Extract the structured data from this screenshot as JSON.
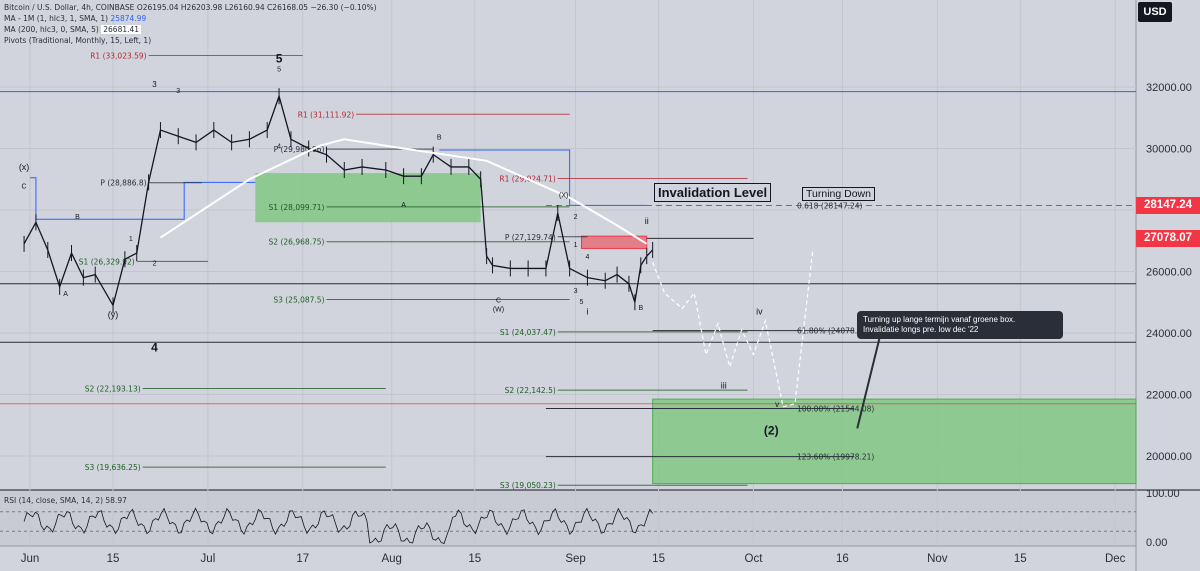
{
  "legend": {
    "title": "Bitcoin / U.S. Dollar, 4h, COINBASE",
    "ohlc": "O26195.04  H26203.98  L26160.94  C26168.05  −26.30 (−0.10%)",
    "ma1_label": "MA - 1M (1, hlc3, 1, SMA, 1)",
    "ma1_value": "25874.99",
    "ma2_label": "MA (200, hlc3, 0, SMA, 5)",
    "ma2_value": "26681.41",
    "pivots_label": "Pivots (Traditional, Monthly, 15, Left, 1)"
  },
  "currency": "USD",
  "annotations": {
    "invalidation": "Invalidation Level",
    "turning_down": "Turning Down",
    "callout_line1": "Turning up lange termijn vanaf groene box.",
    "callout_line2": "Invalidatie longs pre. low dec '22"
  },
  "price_tags": [
    {
      "value": "28147.24",
      "price": 28147.24,
      "color": "#f23645"
    },
    {
      "value": "27078.07",
      "price": 27078.07,
      "color": "#f23645"
    }
  ],
  "colors": {
    "background": "#d1d4dc",
    "candle": "#131722",
    "ma": "#ffffff",
    "green_box": "#81c784",
    "red": "#f23645",
    "blue": "#2962ff",
    "pivot_red": "#b22833",
    "pivot_green": "#1b5e20"
  },
  "chart_data": {
    "type": "line",
    "title": "Bitcoin / U.S. Dollar, 4h, COINBASE",
    "y_axis_ticks": [
      "32000.00",
      "30000.00",
      "28000.00",
      "26000.00",
      "24000.00",
      "22000.00",
      "20000.00"
    ],
    "y_ticks_numeric": [
      32000,
      30000,
      28000,
      26000,
      24000,
      22000,
      20000
    ],
    "x_axis_ticks": [
      "Jun",
      "15",
      "Jul",
      "17",
      "Aug",
      "15",
      "Sep",
      "15",
      "Oct",
      "16",
      "Nov",
      "15",
      "Dec"
    ],
    "rsi_ticks": [
      "100.00",
      "0.00"
    ],
    "rsi_label": "RSI (14, close, SMA, 14, 2)",
    "rsi_value": "58.97",
    "price_path": [
      [
        "May 31",
        26900
      ],
      [
        "Jun 2",
        27600
      ],
      [
        "Jun 4",
        26700
      ],
      [
        "Jun 6",
        25500
      ],
      [
        "Jun 8",
        26600
      ],
      [
        "Jun 10",
        25800
      ],
      [
        "Jun 12",
        25900
      ],
      [
        "Jun 15",
        24900
      ],
      [
        "Jun 17",
        26400
      ],
      [
        "Jun 19",
        26600
      ],
      [
        "Jun 21",
        28900
      ],
      [
        "Jun 23",
        30600
      ],
      [
        "Jun 26",
        30400
      ],
      [
        "Jun 29",
        30200
      ],
      [
        "Jul 2",
        30600
      ],
      [
        "Jul 5",
        30200
      ],
      [
        "Jul 8",
        30300
      ],
      [
        "Jul 11",
        30600
      ],
      [
        "Jul 13",
        31700
      ],
      [
        "Jul 15",
        30300
      ],
      [
        "Jul 18",
        30000
      ],
      [
        "Jul 21",
        29800
      ],
      [
        "Jul 24",
        29300
      ],
      [
        "Jul 27",
        29400
      ],
      [
        "Jul 31",
        29300
      ],
      [
        "Aug 3",
        29100
      ],
      [
        "Aug 6",
        29100
      ],
      [
        "Aug 8",
        29800
      ],
      [
        "Aug 11",
        29400
      ],
      [
        "Aug 14",
        29400
      ],
      [
        "Aug 16",
        29000
      ],
      [
        "Aug 17",
        26500
      ],
      [
        "Aug 18",
        26200
      ],
      [
        "Aug 21",
        26100
      ],
      [
        "Aug 24",
        26100
      ],
      [
        "Aug 27",
        26100
      ],
      [
        "Aug 29",
        27900
      ],
      [
        "Aug 31",
        26100
      ],
      [
        "Sep 3",
        25800
      ],
      [
        "Sep 6",
        25700
      ],
      [
        "Sep 8",
        25900
      ],
      [
        "Sep 10",
        25600
      ],
      [
        "Sep 11",
        25000
      ],
      [
        "Sep 12",
        26200
      ],
      [
        "Sep 13",
        26500
      ],
      [
        "Sep 14",
        26700
      ]
    ],
    "ma_path": [
      [
        "Jun 23",
        27100
      ],
      [
        "Jul 8",
        29000
      ],
      [
        "Jul 20",
        30100
      ],
      [
        "Jul 24",
        30300
      ],
      [
        "Aug 3",
        30000
      ],
      [
        "Aug 17",
        29600
      ],
      [
        "Aug 31",
        28400
      ],
      [
        "Sep 8",
        27500
      ],
      [
        "Sep 13",
        26900
      ]
    ],
    "projection_path": [
      [
        "Sep 14",
        26300
      ],
      [
        "Sep 16",
        25300
      ],
      [
        "Sep 19",
        24800
      ],
      [
        "Sep 21",
        25300
      ],
      [
        "Sep 23",
        23300
      ],
      [
        "Sep 25",
        24300
      ],
      [
        "Sep 27",
        22900
      ],
      [
        "Sep 29",
        24100
      ],
      [
        "Oct 1",
        23300
      ],
      [
        "Oct 3",
        24400
      ],
      [
        "Oct 6",
        21600
      ],
      [
        "Oct 8",
        21700
      ],
      [
        "Oct 11",
        26700
      ]
    ],
    "horizontal_lines": [
      {
        "label": "61.80% (24078.67)",
        "price": 24078.67
      },
      {
        "label": "100.00% (21544.08)",
        "price": 21544.08
      },
      {
        "label": "123.60% (19978.21)",
        "price": 19978.21
      },
      {
        "label": "0.618 (28147.24)",
        "price": 28147.24,
        "style": "dashed"
      },
      {
        "label": "",
        "price": 27078.07
      }
    ],
    "pivots": [
      {
        "label": "R1 (33,023.59)",
        "price": 33023.59,
        "kind": "resistance"
      },
      {
        "label": "R1 (31,111.92)",
        "price": 31111.92,
        "kind": "resistance"
      },
      {
        "label": "R1 (29,024.71)",
        "price": 29024.71,
        "kind": "resistance"
      },
      {
        "label": "P (29,980.96)",
        "price": 29980.96,
        "kind": "pivot"
      },
      {
        "label": "P (28,886.8)",
        "price": 28886.8,
        "kind": "pivot"
      },
      {
        "label": "P (27,129.74)",
        "price": 27129.74,
        "kind": "pivot"
      },
      {
        "label": "S1 (28,099.71)",
        "price": 28099.71,
        "kind": "support"
      },
      {
        "label": "S1 (26,329.92)",
        "price": 26329.92,
        "kind": "support"
      },
      {
        "label": "S1 (24,037.47)",
        "price": 24037.47,
        "kind": "support"
      },
      {
        "label": "S2 (26,968.75)",
        "price": 26968.75,
        "kind": "support"
      },
      {
        "label": "S2 (22,193.13)",
        "price": 22193.13,
        "kind": "support"
      },
      {
        "label": "S2 (22,142.5)",
        "price": 22142.5,
        "kind": "support"
      },
      {
        "label": "S3 (25,087.5)",
        "price": 25087.5,
        "kind": "support"
      },
      {
        "label": "S3 (19,636.25)",
        "price": 19636.25,
        "kind": "support"
      },
      {
        "label": "S3 (19,050.23)",
        "price": 19050.23,
        "kind": "support"
      }
    ],
    "wave_labels": [
      "5",
      "4",
      "3",
      "(x)",
      "C",
      "B",
      "A",
      "(y)",
      "1",
      "2",
      "3",
      "4",
      "5",
      "B",
      "A",
      "C",
      "(W)",
      "(X)",
      "2",
      "1",
      "4",
      "3",
      "5",
      "i",
      "B",
      "ii",
      "iii",
      "iv",
      "v",
      "(2)"
    ],
    "grid": true
  }
}
